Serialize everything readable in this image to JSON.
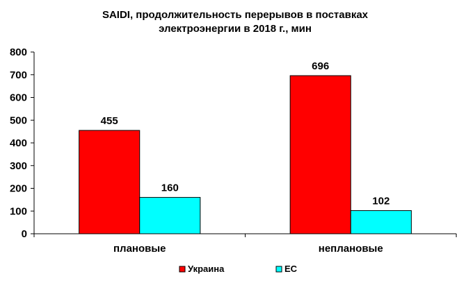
{
  "chart_data": {
    "type": "bar",
    "title_line1": "SAIDI, продолжительность перерывов в поставках",
    "title_line2": "электроэнергии в 2018 г., мин",
    "categories": [
      "плановые",
      "неплановые"
    ],
    "series": [
      {
        "name": "Украина",
        "values": [
          455,
          696
        ],
        "color": "#ff0000"
      },
      {
        "name": "ЕС",
        "values": [
          160,
          102
        ],
        "color": "#00ffff"
      }
    ],
    "ylim": [
      0,
      800
    ],
    "yticks": [
      "0",
      "100",
      "200",
      "300",
      "400",
      "500",
      "600",
      "700",
      "800"
    ],
    "data_labels": [
      [
        "455",
        "696"
      ],
      [
        "160",
        "102"
      ]
    ],
    "grid": false,
    "legend_position": "bottom"
  }
}
